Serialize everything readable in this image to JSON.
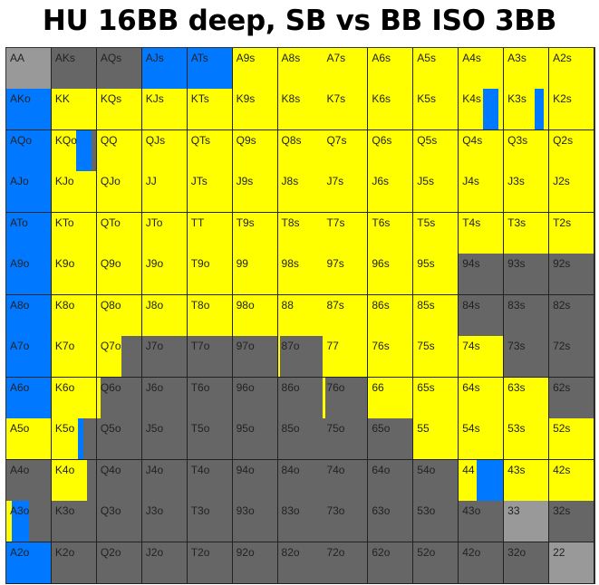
{
  "title": "HU 16BB deep, SB vs BB ISO 3BB",
  "colors": {
    "raise": "#ffff00",
    "allin": "#0078ff",
    "fold": "#666666",
    "check": "#999999"
  },
  "hands": [
    [
      "AA",
      "AKs",
      "AQs",
      "AJs",
      "ATs",
      "A9s",
      "A8s",
      "A7s",
      "A6s",
      "A5s",
      "A4s",
      "A3s",
      "A2s"
    ],
    [
      "AKo",
      "KK",
      "KQs",
      "KJs",
      "KTs",
      "K9s",
      "K8s",
      "K7s",
      "K6s",
      "K5s",
      "K4s",
      "K3s",
      "K2s"
    ],
    [
      "AQo",
      "KQo",
      "QQ",
      "QJs",
      "QTs",
      "Q9s",
      "Q8s",
      "Q7s",
      "Q6s",
      "Q5s",
      "Q4s",
      "Q3s",
      "Q2s"
    ],
    [
      "AJo",
      "KJo",
      "QJo",
      "JJ",
      "JTs",
      "J9s",
      "J8s",
      "J7s",
      "J6s",
      "J5s",
      "J4s",
      "J3s",
      "J2s"
    ],
    [
      "ATo",
      "KTo",
      "QTo",
      "JTo",
      "TT",
      "T9s",
      "T8s",
      "T7s",
      "T6s",
      "T5s",
      "T4s",
      "T3s",
      "T2s"
    ],
    [
      "A9o",
      "K9o",
      "Q9o",
      "J9o",
      "T9o",
      "99",
      "98s",
      "97s",
      "96s",
      "95s",
      "94s",
      "93s",
      "92s"
    ],
    [
      "A8o",
      "K8o",
      "Q8o",
      "J8o",
      "T8o",
      "98o",
      "88",
      "87s",
      "86s",
      "85s",
      "84s",
      "83s",
      "82s"
    ],
    [
      "A7o",
      "K7o",
      "Q7o",
      "J7o",
      "T7o",
      "97o",
      "87o",
      "77",
      "76s",
      "75s",
      "74s",
      "73s",
      "72s"
    ],
    [
      "A6o",
      "K6o",
      "Q6o",
      "J6o",
      "T6o",
      "96o",
      "86o",
      "76o",
      "66",
      "65s",
      "64s",
      "63s",
      "62s"
    ],
    [
      "A5o",
      "K5o",
      "Q5o",
      "J5o",
      "T5o",
      "95o",
      "85o",
      "75o",
      "65o",
      "55",
      "54s",
      "53s",
      "52s"
    ],
    [
      "A4o",
      "K4o",
      "Q4o",
      "J4o",
      "T4o",
      "94o",
      "84o",
      "74o",
      "64o",
      "54o",
      "44",
      "43s",
      "42s"
    ],
    [
      "A3o",
      "K3o",
      "Q3o",
      "J3o",
      "T3o",
      "93o",
      "83o",
      "73o",
      "63o",
      "53o",
      "43o",
      "33",
      "32s"
    ],
    [
      "A2o",
      "K2o",
      "Q2o",
      "J2o",
      "T2o",
      "92o",
      "82o",
      "72o",
      "62o",
      "52o",
      "42o",
      "32o",
      "22"
    ]
  ],
  "actions": [
    [
      "C",
      "F",
      "F",
      "A",
      "A",
      "R",
      "R",
      "R",
      "R",
      "R",
      "R",
      "R",
      "R"
    ],
    [
      "A",
      "R",
      "R",
      "R",
      "R",
      "R",
      "R",
      "R",
      "R",
      "R",
      "R:0.55,A:0.35,R:0.1",
      "R:0.7,A:0.2,R:0.1",
      "R"
    ],
    [
      "A",
      "R:0.55,A:0.35,F:0.1",
      "R",
      "R",
      "R",
      "R",
      "R",
      "R",
      "R",
      "R",
      "R",
      "R",
      "R"
    ],
    [
      "A",
      "R",
      "R",
      "R",
      "R",
      "R",
      "R",
      "R",
      "R",
      "R",
      "R",
      "R",
      "R"
    ],
    [
      "A",
      "R",
      "R",
      "R",
      "R",
      "R",
      "R",
      "R",
      "R",
      "R",
      "R",
      "R",
      "R"
    ],
    [
      "A",
      "R",
      "R",
      "R",
      "R",
      "R",
      "R",
      "R",
      "R",
      "R",
      "F",
      "F",
      "F"
    ],
    [
      "A",
      "R",
      "R",
      "R",
      "R",
      "R",
      "R",
      "R",
      "R",
      "R",
      "F",
      "F",
      "F"
    ],
    [
      "A",
      "R",
      "R:0.55,F:0.45",
      "F",
      "F",
      "F",
      "R:0.05,F:0.95",
      "R",
      "R",
      "R",
      "R",
      "F",
      "F"
    ],
    [
      "A",
      "R",
      "R:0.08,F:0.92",
      "F",
      "F",
      "F",
      "F",
      "R:0.06,F:0.94",
      "R",
      "R",
      "R",
      "R",
      "F"
    ],
    [
      "R",
      "R:0.6,A:0.12,F:0.28",
      "F",
      "F",
      "F",
      "F",
      "F",
      "F",
      "F",
      "R",
      "R",
      "R",
      "R"
    ],
    [
      "F",
      "R:0.8,F:0.2",
      "F",
      "F",
      "F",
      "F",
      "F",
      "F",
      "F",
      "F",
      "R:0.4,A:0.6",
      "R",
      "R"
    ],
    [
      "R:0.12,A:0.38,F:0.5",
      "F",
      "F",
      "F",
      "F",
      "F",
      "F",
      "F",
      "F",
      "F",
      "F",
      "C",
      "F"
    ],
    [
      "A",
      "F",
      "F",
      "F",
      "F",
      "F",
      "F",
      "F",
      "F",
      "F",
      "F",
      "F",
      "C"
    ]
  ]
}
